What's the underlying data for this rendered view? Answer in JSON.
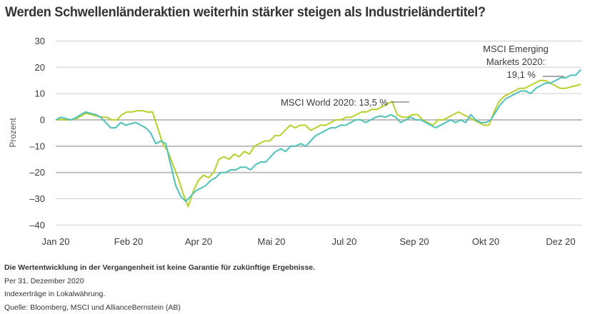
{
  "title": "Werden Schwellenländeraktien weiterhin stärker steigen als Industrieländertitel?",
  "chart_data": {
    "type": "line",
    "title": "Werden Schwellenländeraktien weiterhin stärker steigen als Industrieländertitel?",
    "xlabel": "",
    "ylabel": "Prozent",
    "ylim": [
      -40,
      30
    ],
    "yticks": [
      30,
      20,
      10,
      0,
      -10,
      -20,
      -30,
      -40
    ],
    "ytick_labels": [
      "30",
      "20",
      "10",
      "0",
      "–10",
      "–20",
      "–30",
      "–40"
    ],
    "x_tick_labels": [
      "Jan 20",
      "Feb 20",
      "Apr 20",
      "Mai 20",
      "Jul 20",
      "Sep 20",
      "Okt 20",
      "Dez 20"
    ],
    "grid": true,
    "legend": "annotations",
    "series": [
      {
        "name": "MSCI Emerging Markets",
        "color": "#4fc1b8",
        "final_value": 19.1,
        "values": [
          0,
          1,
          0.5,
          0,
          0.8,
          2,
          3,
          2.5,
          2,
          1,
          -1,
          -3,
          -3,
          -1,
          -2,
          -1.5,
          -1,
          -2,
          -3,
          -5,
          -9,
          -8,
          -9,
          -17,
          -25,
          -29,
          -31,
          -29,
          -27,
          -26,
          -25,
          -23,
          -22,
          -20,
          -20,
          -19,
          -19,
          -18,
          -18,
          -19,
          -17,
          -16,
          -16,
          -14,
          -12,
          -11,
          -12,
          -10,
          -10,
          -9,
          -10,
          -8,
          -6,
          -5,
          -4,
          -3,
          -3,
          -2,
          -2,
          -1,
          0,
          0,
          -1,
          0,
          1,
          1.5,
          1,
          2,
          1,
          -1,
          0,
          1,
          0,
          0,
          -1,
          -2,
          -3,
          -2,
          -1,
          0,
          -1,
          0,
          -1,
          2,
          0,
          -1,
          -1,
          0,
          3,
          6,
          8,
          9,
          10,
          11,
          11,
          10,
          12,
          13,
          14,
          14,
          15,
          16,
          16,
          17,
          17,
          19.1
        ]
      },
      {
        "name": "MSCI World",
        "color": "#b9cf2b",
        "final_value": 13.5,
        "values": [
          0,
          0.2,
          0,
          0,
          0.5,
          1.5,
          2.5,
          2,
          1.5,
          1,
          1,
          0,
          0,
          2,
          3,
          3,
          3.5,
          3.5,
          3,
          3,
          -3,
          -9,
          -12,
          -17,
          -22,
          -28,
          -33,
          -27,
          -23,
          -21,
          -22,
          -20,
          -15,
          -14,
          -15,
          -13,
          -14,
          -12,
          -13,
          -10,
          -9,
          -8,
          -8,
          -6,
          -6,
          -4,
          -2,
          -3,
          -2,
          -2,
          -4,
          -3,
          -2,
          -2,
          -1,
          0,
          0,
          1,
          1,
          2,
          3,
          3,
          4,
          4,
          5,
          6,
          7,
          2,
          1,
          1,
          2,
          2,
          0,
          -1,
          -2,
          0,
          0,
          1,
          2,
          3,
          2,
          1,
          0,
          -1,
          -2,
          -2,
          3,
          7,
          9,
          10,
          11,
          12,
          12,
          13,
          14,
          15,
          15,
          14,
          13,
          12,
          12,
          12.5,
          13,
          13.5
        ]
      }
    ],
    "annotations": [
      {
        "text_lines": [
          "MSCI Emerging",
          "Markets 2020:",
          "19,1 %"
        ],
        "target_series": "MSCI Emerging Markets"
      },
      {
        "text_lines": [
          "MSCI World 2020: 13,5 %"
        ],
        "target_series": "MSCI World"
      }
    ]
  },
  "notes": {
    "disclaimer": "Die Wertentwicklung in der Vergangenheit ist keine Garantie für zukünftige Ergebnisse.",
    "as_of": "Per 31. Dezember 2020",
    "currency_note": "Indexerträge in Lokalwährung.",
    "source": "Quelle: Bloomberg, MSCI und AllianceBernstein (AB)"
  }
}
